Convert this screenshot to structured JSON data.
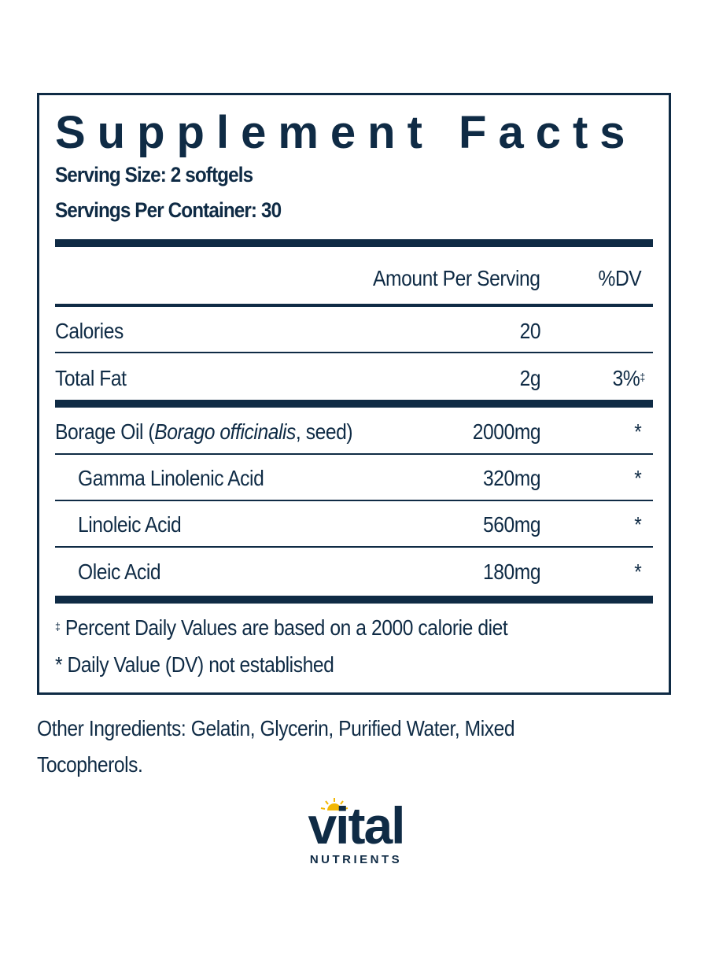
{
  "title": "Supplement Facts",
  "serving_size": "Serving Size: 2 softgels",
  "servings_per_container": "Servings Per Container: 30",
  "headers": {
    "amount": "Amount Per Serving",
    "dv": "%DV"
  },
  "rows": [
    {
      "name": "Calories",
      "amount": "20",
      "dv": ""
    },
    {
      "name": "Total Fat",
      "amount": "2g",
      "dv": "3%",
      "dv_mark": "‡"
    },
    {
      "name_pre": "Borage Oil (",
      "name_italic": "Borago officinalis",
      "name_post": ", seed)",
      "amount": "2000mg",
      "dv": "*"
    },
    {
      "name": "Gamma Linolenic Acid",
      "amount": "320mg",
      "dv": "*"
    },
    {
      "name": "Linoleic Acid",
      "amount": "560mg",
      "dv": "*"
    },
    {
      "name": "Oleic Acid",
      "amount": "180mg",
      "dv": "*"
    }
  ],
  "footnotes": {
    "mark1": "‡",
    "note1": " Percent Daily Values are based on a 2000 calorie diet",
    "note2": "* Daily Value (DV) not established"
  },
  "other_ingredients_1": "Other Ingredients: Gelatin, Glycerin, Purified Water, Mixed",
  "other_ingredients_2": "Tocopherols.",
  "logo": {
    "word": "vital",
    "sub": "NUTRIENTS"
  },
  "colors": {
    "navy": "#0f2b45",
    "sun": "#f2b705"
  }
}
